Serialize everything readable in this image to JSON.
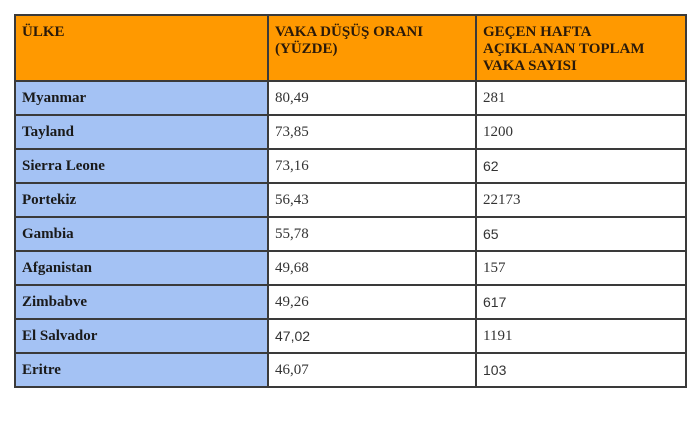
{
  "table": {
    "headers": [
      "ÜLKE",
      "VAKA DÜŞÜŞ ORANI (YÜZDE)",
      "GEÇEN HAFTA AÇIKLANAN TOPLAM VAKA SAYISI"
    ],
    "rows": [
      {
        "country": "Myanmar",
        "rate": "80,49",
        "cases": "281"
      },
      {
        "country": "Tayland",
        "rate": "73,85",
        "cases": "1200"
      },
      {
        "country": "Sierra Leone",
        "rate": "73,16",
        "cases": "62"
      },
      {
        "country": "Portekiz",
        "rate": "56,43",
        "cases": "22173"
      },
      {
        "country": "Gambia",
        "rate": "55,78",
        "cases": "65"
      },
      {
        "country": "Afganistan",
        "rate": "49,68",
        "cases": "157"
      },
      {
        "country": "Zimbabve",
        "rate": "49,26",
        "cases": "617"
      },
      {
        "country": "El Salvador",
        "rate": "47,02",
        "cases": "1191"
      },
      {
        "country": "Eritre",
        "rate": "46,07",
        "cases": "103"
      }
    ]
  },
  "colors": {
    "header_bg": "#ff9900",
    "country_bg": "#a4c2f4",
    "border": "#3a3a3a"
  }
}
